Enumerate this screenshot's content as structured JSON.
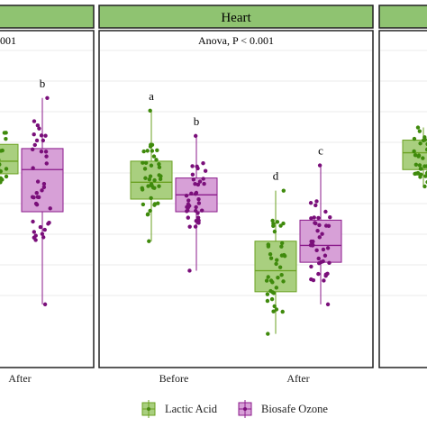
{
  "chart_data": [
    {
      "type": "box",
      "panel": "left (partially visible)",
      "strip_title": "",
      "annotation": "001",
      "categories": [
        "After"
      ],
      "series": [
        {
          "name": "Lactic Acid",
          "color": "#6aa121",
          "boxes": [
            {
              "category": "After",
              "q1": 0.66,
              "median": 0.69,
              "q3": 0.73,
              "whisker_low": 0.64,
              "whisker_high": 0.76,
              "letter": ""
            }
          ]
        },
        {
          "name": "Biosafe Ozone",
          "color": "#8b1a8b",
          "boxes": [
            {
              "category": "After",
              "q1": 0.57,
              "median": 0.67,
              "q3": 0.72,
              "whisker_low": 0.35,
              "whisker_high": 0.84,
              "letter": "b"
            }
          ]
        }
      ],
      "ylim": [
        0,
        1.2
      ]
    },
    {
      "type": "box",
      "panel": "center",
      "strip_title": "Heart",
      "annotation": "Anova, P < 0.001",
      "categories": [
        "Before",
        "After"
      ],
      "series": [
        {
          "name": "Lactic Acid",
          "color": "#6aa121",
          "boxes": [
            {
              "category": "Before",
              "q1": 0.6,
              "median": 0.64,
              "q3": 0.69,
              "whisker_low": 0.5,
              "whisker_high": 0.81,
              "letter": "a"
            },
            {
              "category": "After",
              "q1": 0.38,
              "median": 0.43,
              "q3": 0.5,
              "whisker_low": 0.28,
              "whisker_high": 0.62,
              "letter": "d"
            }
          ]
        },
        {
          "name": "Biosafe Ozone",
          "color": "#8b1a8b",
          "boxes": [
            {
              "category": "Before",
              "q1": 0.57,
              "median": 0.61,
              "q3": 0.65,
              "whisker_low": 0.43,
              "whisker_high": 0.75,
              "letter": "b"
            },
            {
              "category": "After",
              "q1": 0.45,
              "median": 0.49,
              "q3": 0.55,
              "whisker_low": 0.35,
              "whisker_high": 0.68,
              "letter": "c"
            }
          ]
        }
      ],
      "ylim": [
        0,
        1.2
      ]
    },
    {
      "type": "box",
      "panel": "right (partially visible)",
      "strip_title": "",
      "annotation": "",
      "categories": [],
      "series": [
        {
          "name": "Lactic Acid",
          "color": "#6aa121",
          "boxes": [
            {
              "category": "",
              "q1": 0.67,
              "median": 0.71,
              "q3": 0.74,
              "whisker_low": 0.63,
              "whisker_high": 0.77,
              "letter": ""
            }
          ]
        }
      ],
      "ylim": [
        0,
        1.2
      ]
    }
  ],
  "legend": {
    "items": [
      {
        "label": "Lactic Acid",
        "color": "#6aa121",
        "fill": "#a9cf7f"
      },
      {
        "label": "Biosafe Ozone",
        "color": "#8b1a8b",
        "fill": "#d7a0d7"
      }
    ]
  },
  "colors": {
    "strip_fill": "#8fc371",
    "grid": "#ebebeb"
  }
}
